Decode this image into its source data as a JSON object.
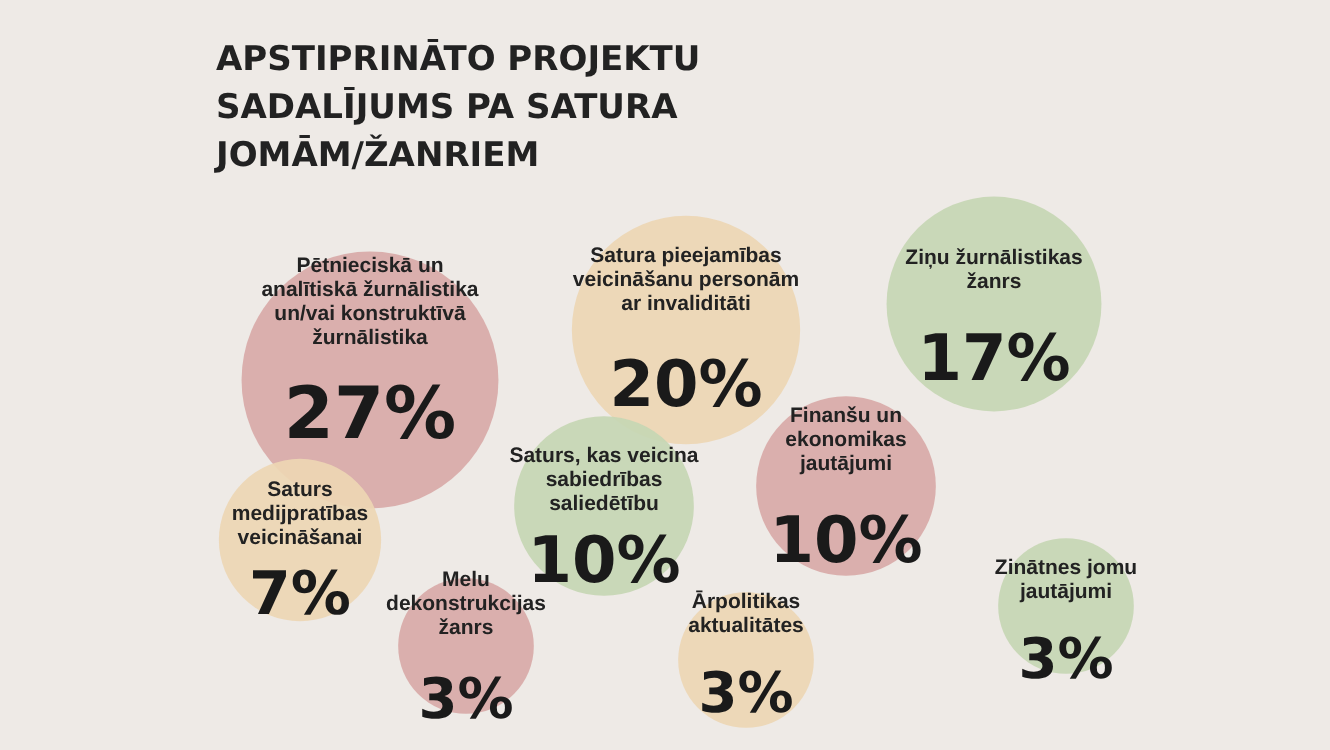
{
  "chart_data": {
    "type": "other",
    "title": "APSTIPRINĀTO PROJEKTU SADALĪJUMS PA SATURA JOMĀM/ŽANRIEM",
    "categories": [
      "Pētnieciskā un analītiskā žurnālistika un/vai konstruktīvā žurnālistika",
      "Satura pieejamības veicināšanu personām ar invaliditāti",
      "Ziņu žurnālistikas žanrs",
      "Saturs medijpratības veicināšanai",
      "Saturs, kas veicina sabiedrības saliedētību",
      "Finanšu un ekonomikas jautājumi",
      "Melu dekonstrukcijas žanrs",
      "Ārpolitikas aktualitātes",
      "Zinātnes jomu jautājumi"
    ],
    "values": [
      27,
      20,
      17,
      7,
      10,
      10,
      3,
      3,
      3
    ],
    "value_labels": [
      "27%",
      "20%",
      "17%",
      "7%",
      "10%",
      "10%",
      "3%",
      "3%",
      "3%"
    ],
    "colors": [
      "#d8aaa8",
      "#edd6b4",
      "#c6d6b4",
      "#edd6b4",
      "#c6d6b4",
      "#d8aaa8",
      "#d8aaa8",
      "#edd6b4",
      "#c6d6b4"
    ]
  }
}
